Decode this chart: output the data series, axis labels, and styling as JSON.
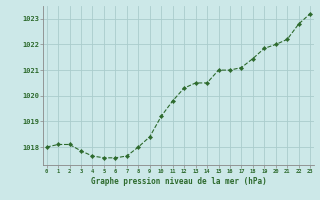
{
  "x": [
    0,
    1,
    2,
    3,
    4,
    5,
    6,
    7,
    8,
    9,
    10,
    11,
    12,
    13,
    14,
    15,
    16,
    17,
    18,
    19,
    20,
    21,
    22,
    23
  ],
  "y": [
    1018.0,
    1018.1,
    1018.1,
    1017.85,
    1017.65,
    1017.58,
    1017.58,
    1017.65,
    1018.0,
    1018.4,
    1019.2,
    1019.8,
    1020.3,
    1020.5,
    1020.5,
    1021.0,
    1021.0,
    1021.1,
    1021.45,
    1021.85,
    1022.0,
    1022.2,
    1022.8,
    1023.2
  ],
  "ylim": [
    1017.3,
    1023.5
  ],
  "yticks": [
    1018,
    1019,
    1020,
    1021,
    1022,
    1023
  ],
  "xticks": [
    0,
    1,
    2,
    3,
    4,
    5,
    6,
    7,
    8,
    9,
    10,
    11,
    12,
    13,
    14,
    15,
    16,
    17,
    18,
    19,
    20,
    21,
    22,
    23
  ],
  "line_color": "#2d6a2d",
  "marker_color": "#2d6a2d",
  "bg_color": "#cce8e8",
  "grid_color": "#aacccc",
  "axis_label_color": "#2d6a2d",
  "xlabel": "Graphe pression niveau de la mer (hPa)",
  "tick_label_color": "#2d6a2d",
  "spine_color": "#888888",
  "xlim_left": -0.3,
  "xlim_right": 23.3
}
